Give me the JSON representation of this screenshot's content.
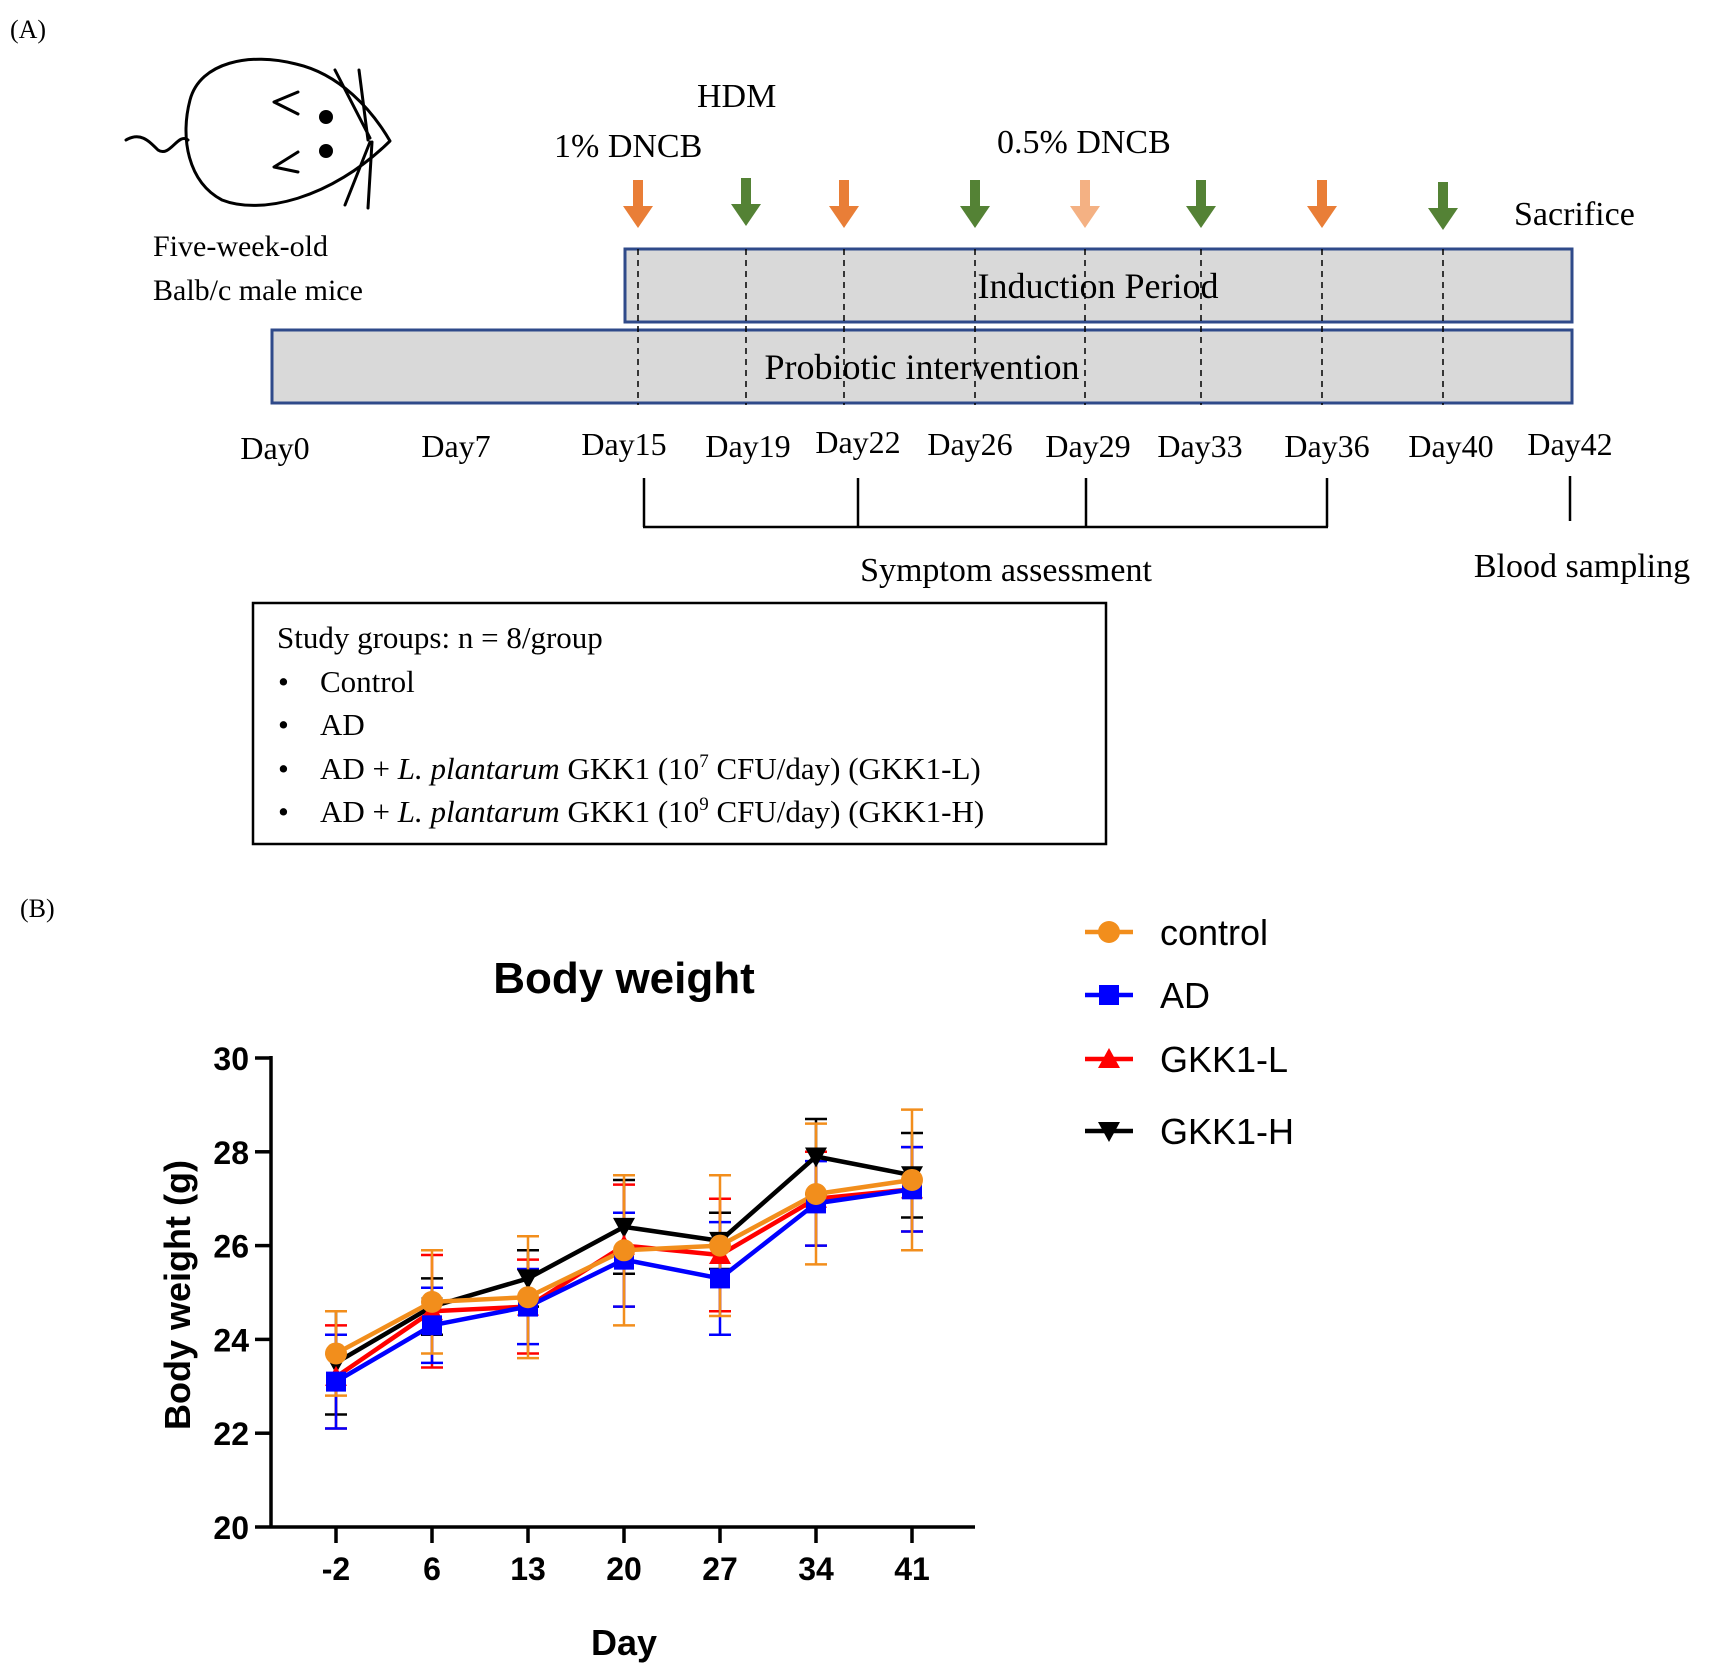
{
  "panel_a": {
    "panel_label": "(A)",
    "animal": {
      "line1": "Five-week-old",
      "line2": "Balb/c male mice"
    },
    "treatments": {
      "hdm": "HDM",
      "dncb_1pct": "1% DNCB",
      "dncb_05pct": "0.5% DNCB",
      "sacrifice": "Sacrifice"
    },
    "bars": {
      "induction": "Induction Period",
      "probiotic": "Probiotic intervention"
    },
    "days": [
      "Day0",
      "Day7",
      "Day15",
      "Day19",
      "Day22",
      "Day26",
      "Day29",
      "Day33",
      "Day36",
      "Day40",
      "Day42"
    ],
    "assessments": {
      "symptom": "Symptom assessment",
      "blood": "Blood sampling"
    },
    "colors": {
      "orange_arrow": "#E97E37",
      "light_orange_arrow": "#F4B183",
      "green_arrow": "#548235",
      "bar_fill": "#D9D9D9",
      "bar_border": "#2F4A8A"
    },
    "study_groups": {
      "title": "Study groups: n = 8/group",
      "bullet": "•",
      "g1": "Control",
      "g2": "AD",
      "g3": {
        "pre": "AD + ",
        "species": "L. plantarum",
        "mid": " GKK1 (10",
        "exp": "7",
        "post": " CFU/day) (GKK1-L)"
      },
      "g4": {
        "pre": "AD + ",
        "species": "L. plantarum",
        "mid": " GKK1 (10",
        "exp": "9",
        "post": " CFU/day) (GKK1-H)"
      }
    }
  },
  "panel_b_label": "(B)",
  "chart_data": {
    "type": "line",
    "title": "Body weight",
    "xlabel": "Day",
    "ylabel": "Body weight (g)",
    "categories": [
      "-2",
      "6",
      "13",
      "20",
      "27",
      "34",
      "41"
    ],
    "ylim": [
      20,
      30
    ],
    "yticks": [
      "20",
      "22",
      "24",
      "26",
      "28",
      "30"
    ],
    "legend_position": "top-right",
    "series": [
      {
        "name": "GKK1-H",
        "color": "#000000",
        "marker": "triangle-down",
        "values": [
          23.5,
          24.7,
          25.3,
          26.4,
          26.1,
          27.9,
          27.5
        ],
        "errors": [
          1.1,
          0.6,
          0.6,
          1.0,
          0.6,
          0.8,
          0.9
        ]
      },
      {
        "name": "GKK1-L",
        "color": "#FF0000",
        "marker": "triangle-up",
        "values": [
          23.2,
          24.6,
          24.7,
          26.0,
          25.8,
          27.0,
          27.2
        ],
        "errors": [
          1.1,
          1.2,
          1.0,
          1.3,
          1.2,
          1.0,
          0.9
        ]
      },
      {
        "name": "AD",
        "color": "#0000FF",
        "marker": "square",
        "values": [
          23.1,
          24.3,
          24.7,
          25.7,
          25.3,
          26.9,
          27.2
        ],
        "errors": [
          1.0,
          0.8,
          0.8,
          1.0,
          1.2,
          0.9,
          0.9
        ]
      },
      {
        "name": "control",
        "color": "#F28E1C",
        "marker": "circle",
        "values": [
          23.7,
          24.8,
          24.9,
          25.9,
          26.0,
          27.1,
          27.4
        ],
        "errors": [
          0.9,
          1.1,
          1.3,
          1.6,
          1.5,
          1.5,
          1.5
        ]
      }
    ],
    "legend_order": [
      "control",
      "AD",
      "GKK1-L",
      "GKK1-H"
    ]
  }
}
